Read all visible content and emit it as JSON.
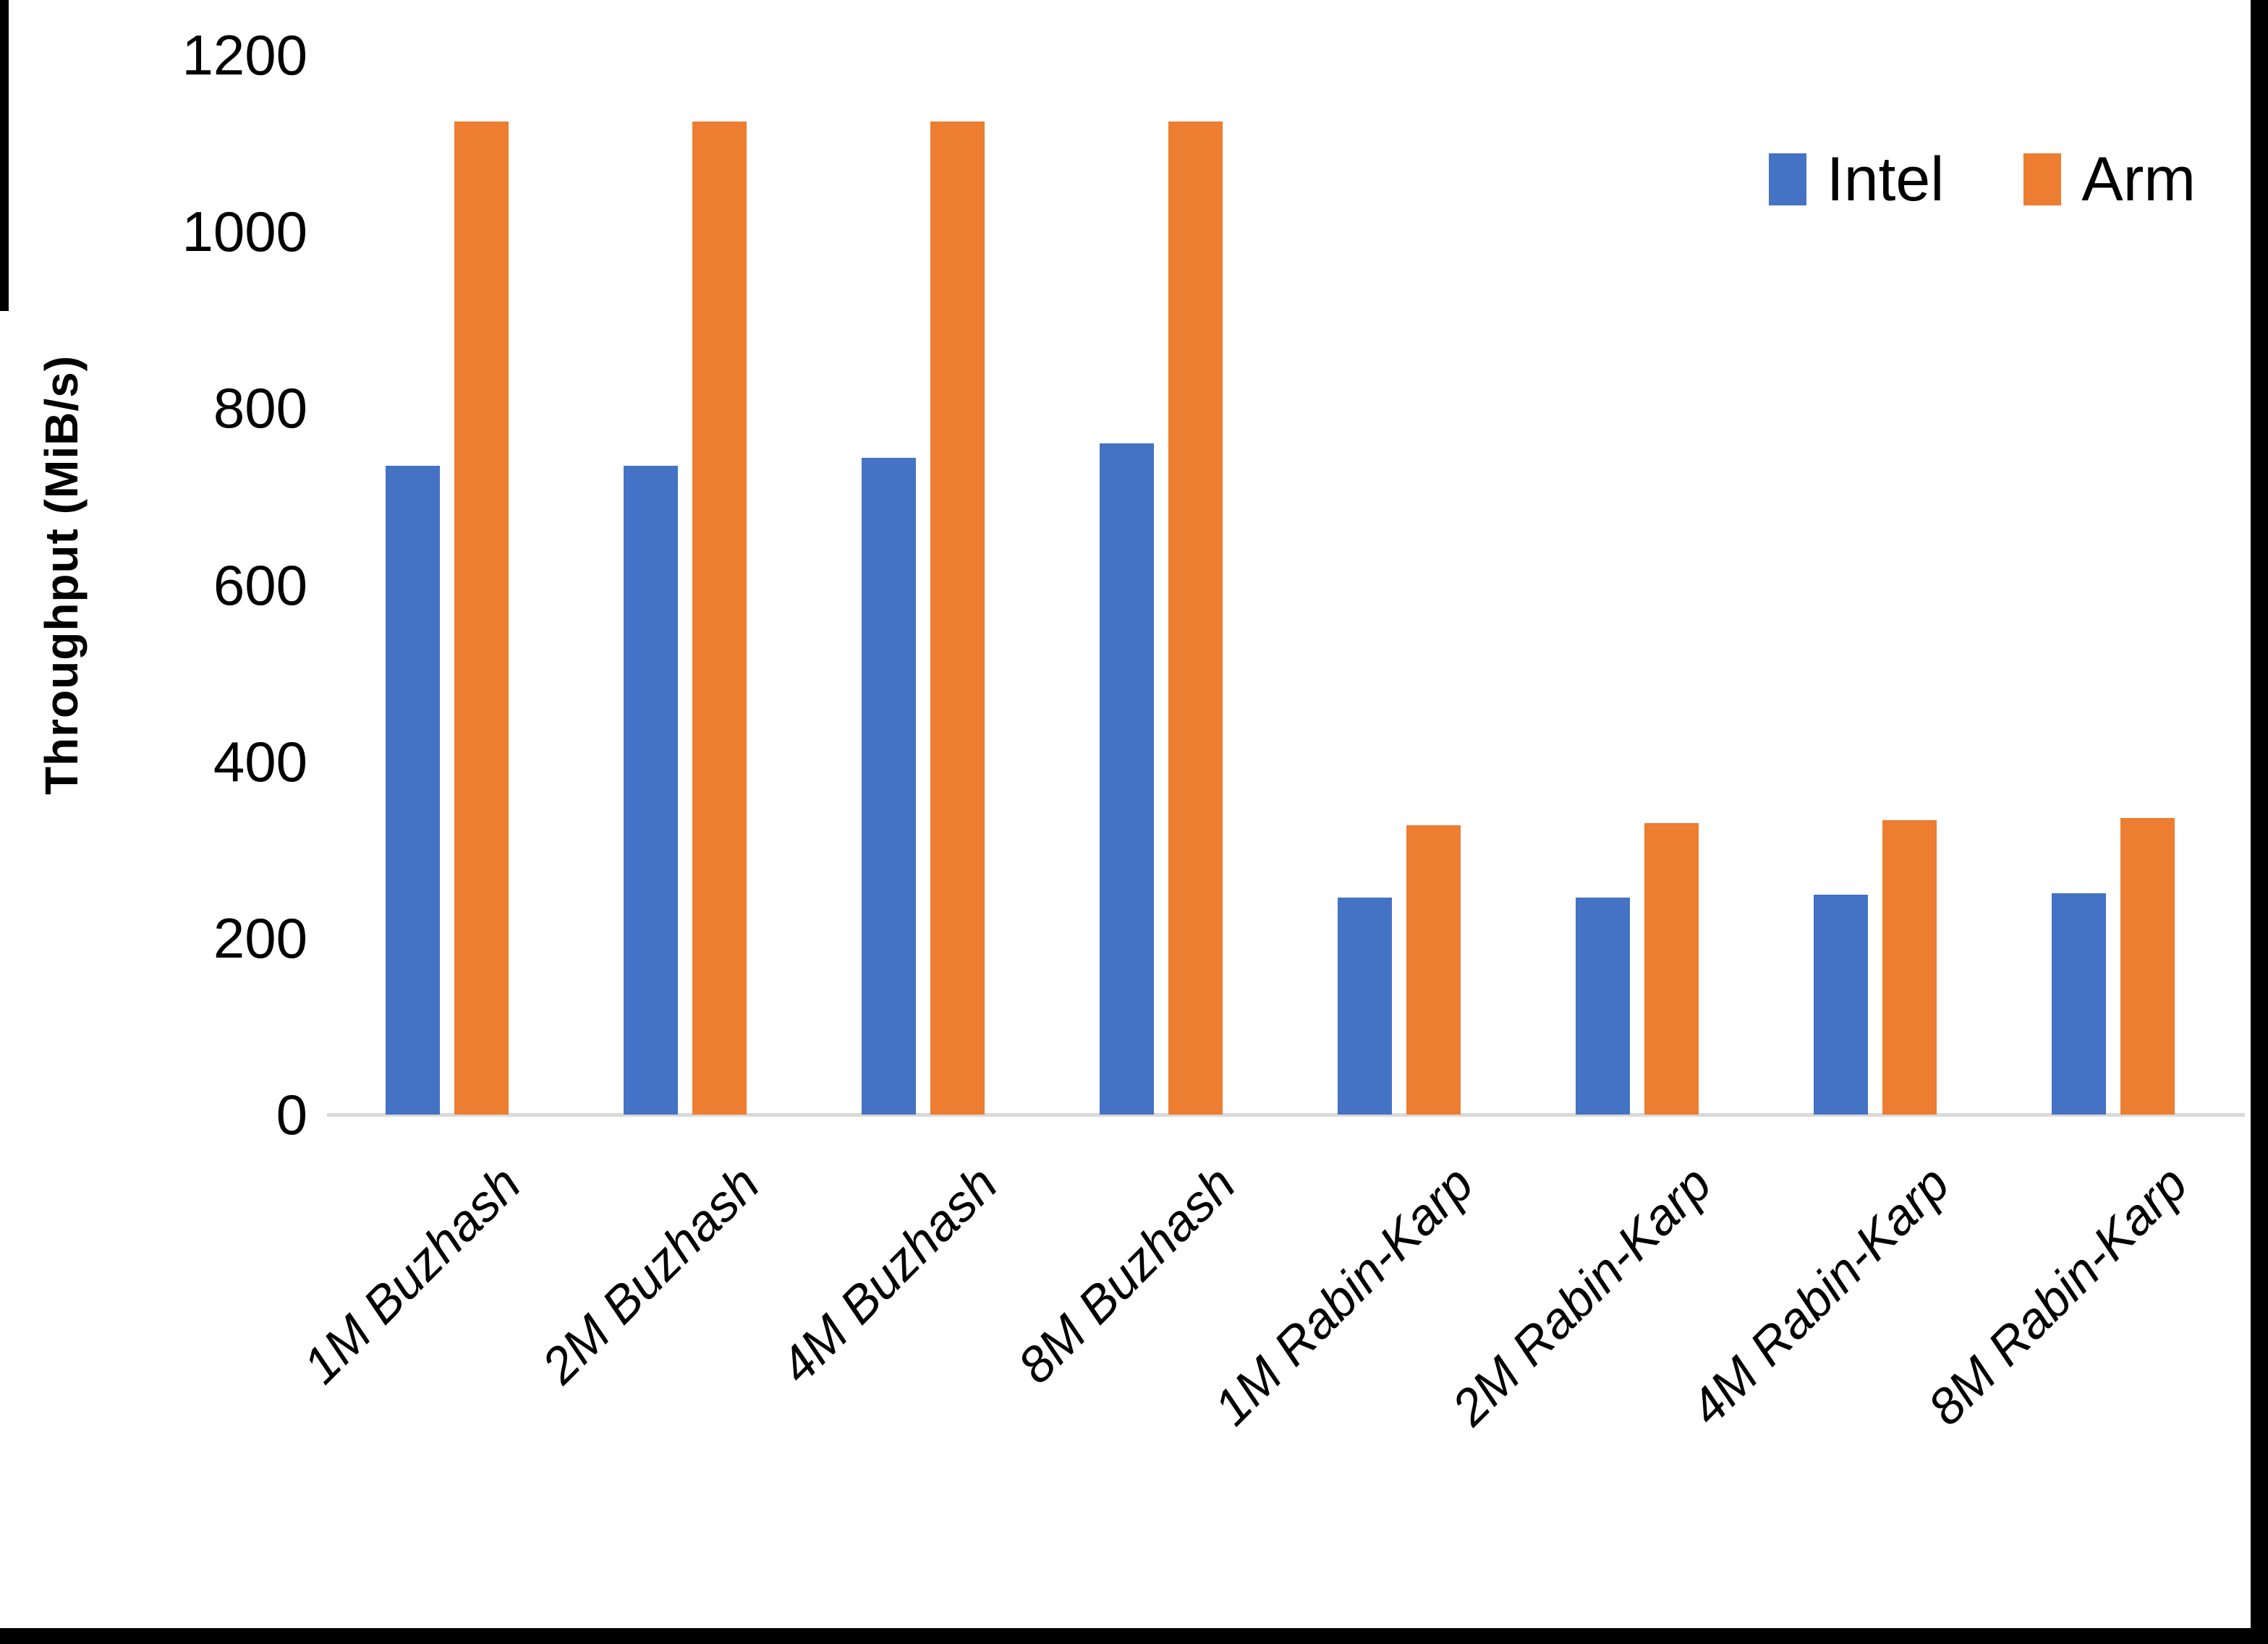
{
  "page": {
    "background": "#ffffff",
    "edge_color": "#000000"
  },
  "legend": {
    "position": "top-right",
    "items": [
      {
        "label": "Intel",
        "color": "#4472C4"
      },
      {
        "label": "Arm",
        "color": "#ED7D31"
      }
    ]
  },
  "chart_data": {
    "type": "bar",
    "title": "",
    "xlabel": "",
    "ylabel": "Throughput (MiB/s)",
    "categories": [
      "1M Buzhash",
      "2M Buzhash",
      "4M Buzhash",
      "8M Buzhash",
      "1M Rabin-Karp",
      "2M Rabin-Karp",
      "4M Rabin-Karp",
      "8M Rabin-Karp"
    ],
    "series": [
      {
        "name": "Intel",
        "color": "#4472C4",
        "values": [
          735,
          735,
          744,
          760,
          246,
          246,
          249,
          251
        ]
      },
      {
        "name": "Arm",
        "color": "#ED7D31",
        "values": [
          1125,
          1125,
          1125,
          1125,
          328,
          330,
          333,
          336
        ]
      }
    ],
    "ylim": [
      0,
      1200
    ],
    "ytick_step": 200,
    "ytick_labels": [
      "0",
      "200",
      "400",
      "600",
      "800",
      "1000",
      "1200"
    ],
    "grid": "off",
    "axis_line_color": "#d9d9d9",
    "legend_position": "top-right",
    "text_color": "#000000"
  }
}
